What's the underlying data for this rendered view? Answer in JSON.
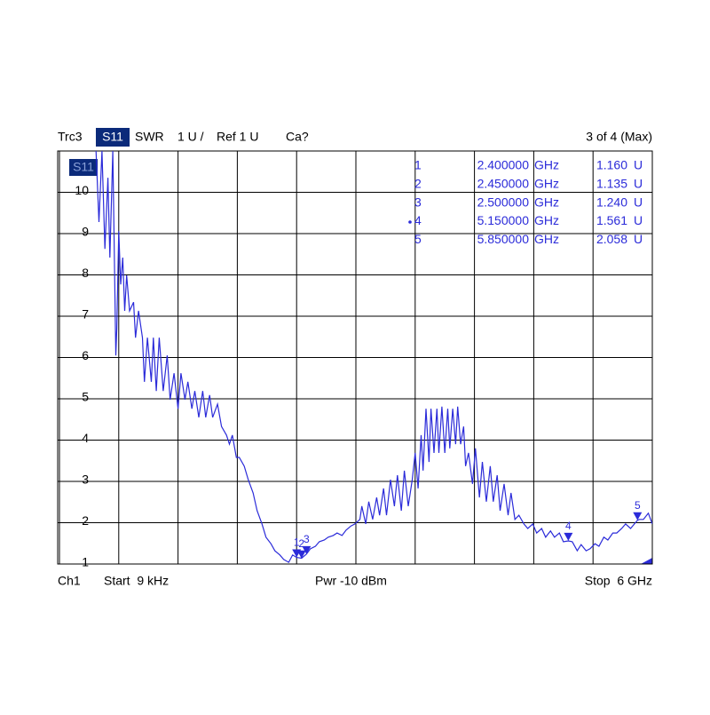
{
  "chart_data": {
    "type": "line",
    "trace": "Trc3",
    "format": "SWR",
    "scale": "1 U /",
    "reference": "Ref 1 U",
    "calibration": "Ca?",
    "marker_status": "3 of 4 (Max)",
    "channel": "Ch1",
    "start": "Start  9 kHz",
    "power": "Pwr -10 dBm",
    "stop": "Stop  6 GHz",
    "xlim": [
      9e-06,
      6
    ],
    "ylim": [
      1,
      11
    ],
    "yticks": [
      1,
      2,
      3,
      4,
      5,
      6,
      7,
      8,
      9,
      10
    ],
    "grid": true,
    "series": [
      {
        "name": "S11",
        "color": "#2b2bd9",
        "x": [
          0.37,
          0.4,
          0.43,
          0.46,
          0.49,
          0.51,
          0.54,
          0.57,
          0.58,
          0.6,
          0.62,
          0.64,
          0.66,
          0.68,
          0.71,
          0.75,
          0.77,
          0.8,
          0.84,
          0.86,
          0.89,
          0.93,
          0.95,
          0.98,
          1.01,
          1.05,
          1.09,
          1.12,
          1.16,
          1.2,
          1.23,
          1.27,
          1.3,
          1.34,
          1.37,
          1.41,
          1.45,
          1.48,
          1.52,
          1.55,
          1.6,
          1.64,
          1.69,
          1.72,
          1.75,
          1.79,
          1.82,
          1.87,
          1.91,
          1.96,
          2.0,
          2.05,
          2.09,
          2.14,
          2.18,
          2.23,
          2.27,
          2.32,
          2.36,
          2.4,
          2.45,
          2.5,
          2.54,
          2.59,
          2.63,
          2.68,
          2.72,
          2.77,
          2.81,
          2.86,
          2.9,
          2.95,
          2.99,
          3.04,
          3.06,
          3.1,
          3.13,
          3.17,
          3.21,
          3.24,
          3.28,
          3.31,
          3.35,
          3.39,
          3.42,
          3.46,
          3.49,
          3.53,
          3.57,
          3.6,
          3.63,
          3.66,
          3.68,
          3.71,
          3.74,
          3.76,
          3.79,
          3.82,
          3.84,
          3.87,
          3.9,
          3.93,
          3.95,
          3.98,
          4.01,
          4.03,
          4.06,
          4.09,
          4.11,
          4.14,
          4.18,
          4.21,
          4.25,
          4.28,
          4.32,
          4.36,
          4.39,
          4.43,
          4.46,
          4.5,
          4.54,
          4.57,
          4.61,
          4.65,
          4.7,
          4.74,
          4.79,
          4.83,
          4.88,
          4.92,
          4.97,
          5.01,
          5.06,
          5.1,
          5.15,
          5.19,
          5.24,
          5.28,
          5.33,
          5.37,
          5.42,
          5.46,
          5.51,
          5.55,
          5.6,
          5.64,
          5.69,
          5.73,
          5.78,
          5.85,
          5.87,
          5.91,
          5.96,
          6.0
        ],
        "values": [
          11.0,
          9.28,
          11.0,
          8.63,
          10.35,
          8.42,
          11.0,
          6.05,
          6.7,
          9.06,
          7.77,
          8.42,
          7.13,
          7.99,
          7.13,
          7.34,
          6.48,
          7.13,
          6.48,
          5.41,
          6.48,
          5.41,
          6.48,
          5.19,
          6.48,
          5.19,
          6.05,
          4.98,
          5.62,
          4.76,
          5.62,
          4.98,
          5.41,
          4.76,
          5.19,
          4.55,
          5.19,
          4.55,
          5.09,
          4.55,
          4.87,
          4.33,
          4.12,
          3.9,
          4.12,
          3.58,
          3.58,
          3.37,
          3.05,
          2.72,
          2.29,
          1.97,
          1.65,
          1.49,
          1.32,
          1.22,
          1.11,
          1.04,
          1.22,
          1.16,
          1.14,
          1.24,
          1.37,
          1.43,
          1.54,
          1.58,
          1.65,
          1.69,
          1.75,
          1.69,
          1.82,
          1.92,
          1.97,
          2.08,
          2.4,
          1.97,
          2.51,
          2.08,
          2.61,
          2.18,
          2.83,
          2.18,
          3.04,
          2.4,
          3.15,
          2.29,
          3.26,
          2.4,
          3.04,
          3.69,
          2.83,
          4.12,
          3.26,
          4.76,
          3.47,
          4.76,
          3.69,
          4.76,
          3.69,
          4.81,
          3.69,
          4.76,
          3.8,
          4.76,
          3.9,
          4.81,
          3.9,
          4.33,
          3.37,
          3.69,
          2.94,
          3.8,
          2.61,
          3.47,
          2.51,
          3.37,
          2.51,
          3.15,
          2.29,
          2.94,
          2.18,
          2.72,
          2.08,
          2.18,
          1.97,
          1.86,
          1.97,
          1.75,
          1.86,
          1.65,
          1.8,
          1.65,
          1.75,
          1.54,
          1.56,
          1.54,
          1.32,
          1.47,
          1.32,
          1.37,
          1.49,
          1.43,
          1.65,
          1.58,
          1.75,
          1.75,
          1.86,
          1.97,
          1.86,
          2.06,
          2.08,
          2.08,
          2.23,
          1.97
        ]
      }
    ],
    "markers": {
      "color": "#2b2bd9",
      "labels": [
        "1",
        "2",
        "3",
        "4",
        "5"
      ],
      "x": [
        2.4,
        2.45,
        2.5,
        5.15,
        5.85
      ],
      "x_labels": [
        "2.400000",
        "2.450000",
        "2.500000",
        "5.150000",
        "5.850000"
      ],
      "x_unit": "GHz",
      "values": [
        1.16,
        1.135,
        1.24,
        1.561,
        2.058
      ],
      "value_labels": [
        "1.160",
        "1.135",
        "1.240",
        "1.561",
        "2.058"
      ],
      "unit": "U"
    }
  }
}
